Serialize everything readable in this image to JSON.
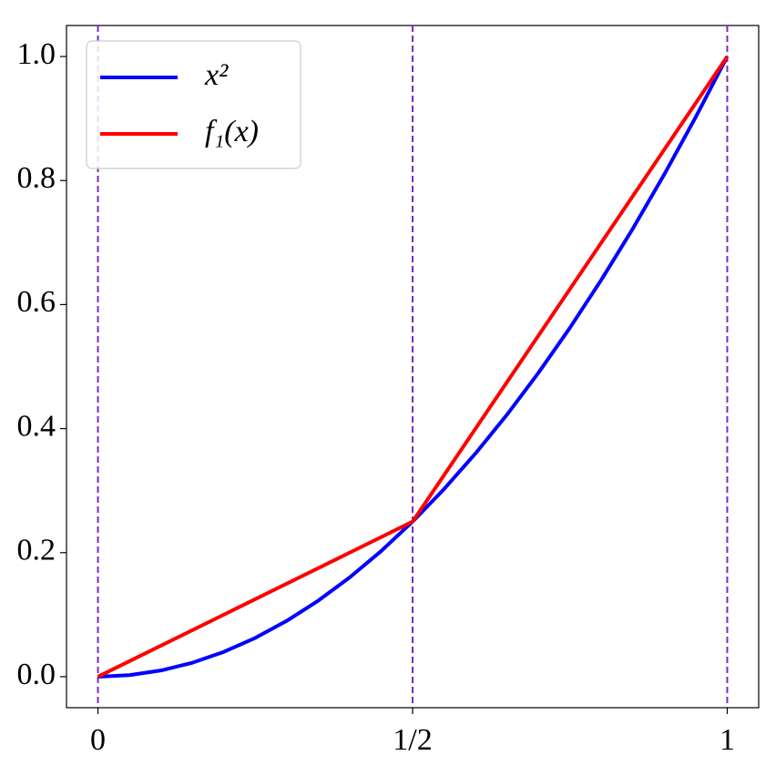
{
  "chart_data": {
    "type": "line",
    "xlim": [
      -0.05,
      1.05
    ],
    "ylim": [
      -0.05,
      1.05
    ],
    "xticks": [
      0,
      {
        "value": 0.5,
        "label": "1/2"
      },
      1
    ],
    "yticks": [
      {
        "value": 0,
        "label": "0.0"
      },
      0.2,
      0.4,
      0.6,
      0.8,
      {
        "value": 1,
        "label": "1.0"
      }
    ],
    "vlines": [
      0,
      0.5,
      1
    ],
    "vline_color": "#7b2cbf",
    "legend": "upper left",
    "series": [
      {
        "name": "x²",
        "color": "#0000ff",
        "x": [
          0,
          0.05,
          0.1,
          0.15,
          0.2,
          0.25,
          0.3,
          0.35,
          0.4,
          0.45,
          0.5,
          0.55,
          0.6,
          0.65,
          0.7,
          0.75,
          0.8,
          0.85,
          0.9,
          0.95,
          1
        ],
        "values": [
          0,
          0.0025,
          0.01,
          0.0225,
          0.04,
          0.0625,
          0.09,
          0.1225,
          0.16,
          0.2025,
          0.25,
          0.3025,
          0.36,
          0.4225,
          0.49,
          0.5625,
          0.64,
          0.7225,
          0.81,
          0.9025,
          1
        ]
      },
      {
        "name": "f₁(x)",
        "color": "#ff0000",
        "x": [
          0,
          0.5,
          1
        ],
        "values": [
          0,
          0.25,
          1
        ]
      }
    ]
  }
}
